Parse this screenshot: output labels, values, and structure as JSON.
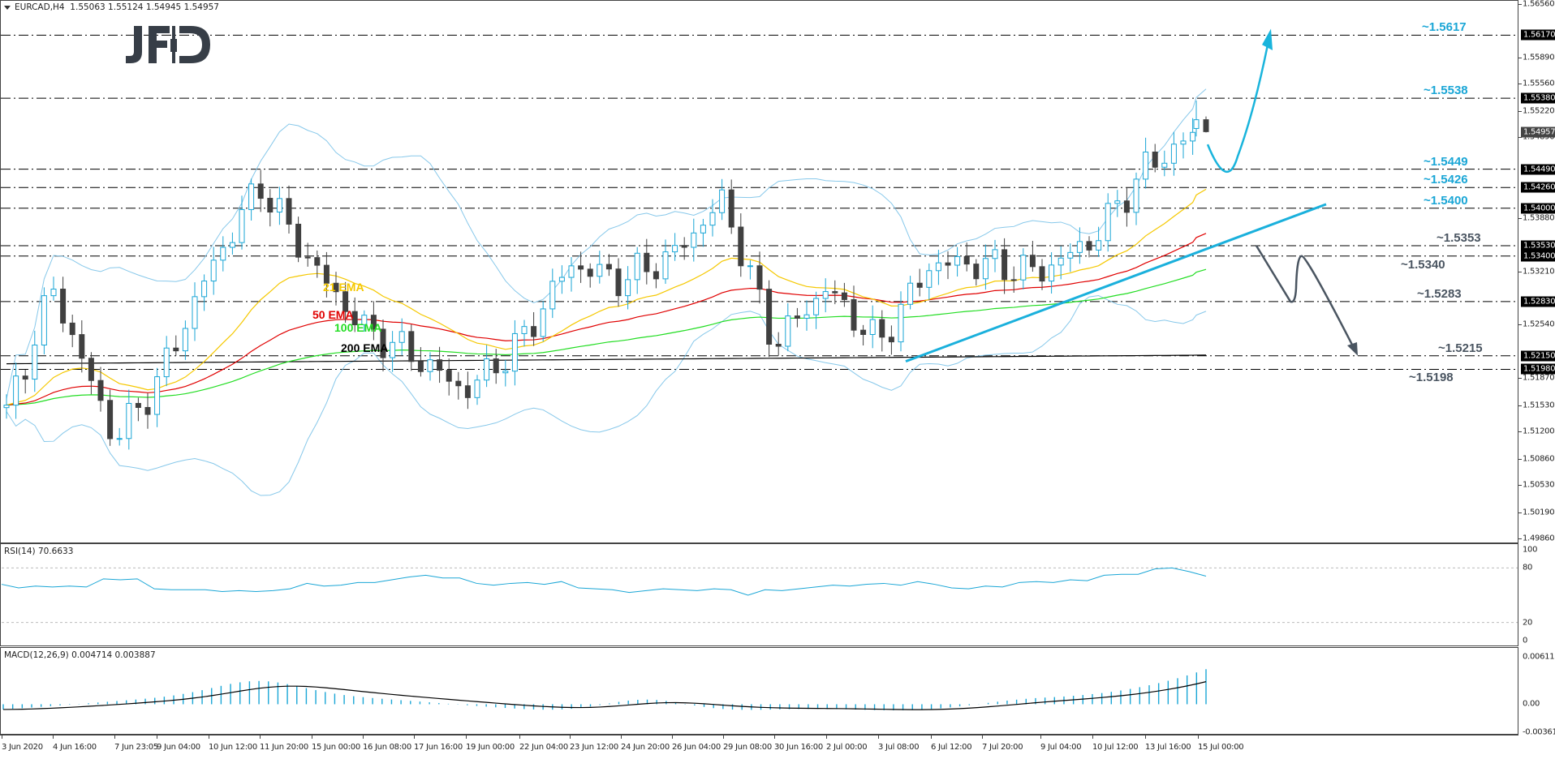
{
  "header": {
    "symbol": "EURCAD,H4",
    "ohlc": "1.55063 1.55124 1.54945 1.54957"
  },
  "logo": {
    "text": "JFD"
  },
  "price_axis": {
    "ticks": [
      "1.56560",
      "1.55890",
      "1.55560",
      "1.55220",
      "1.54890",
      "1.53880",
      "1.53210",
      "1.52540",
      "1.51870",
      "1.51530",
      "1.51200",
      "1.50860",
      "1.50530",
      "1.50190",
      "1.49860"
    ],
    "tags": [
      "1.56170",
      "1.55380",
      "1.54490",
      "1.54260",
      "1.54000",
      "1.53530",
      "1.53400",
      "1.52830",
      "1.52150",
      "1.51980"
    ],
    "current_price": "1.54957"
  },
  "levels": [
    {
      "label": "~1.5617",
      "value": 1.5617,
      "color": "#1aa6d6"
    },
    {
      "label": "~1.5538",
      "value": 1.5538,
      "color": "#1aa6d6"
    },
    {
      "label": "~1.5449",
      "value": 1.5449,
      "color": "#1aa6d6"
    },
    {
      "label": "~1.5426",
      "value": 1.5426,
      "color": "#1aa6d6"
    },
    {
      "label": "~1.5400",
      "value": 1.54,
      "color": "#1aa6d6"
    },
    {
      "label": "~1.5353",
      "value": 1.5353,
      "color": "#4a5561"
    },
    {
      "label": "~1.5340",
      "value": 1.534,
      "color": "#4a5561"
    },
    {
      "label": "~1.5283",
      "value": 1.5283,
      "color": "#4a5561"
    },
    {
      "label": "~1.5215",
      "value": 1.5215,
      "color": "#4a5561"
    },
    {
      "label": "~1.5198",
      "value": 1.5198,
      "color": "#4a5561"
    }
  ],
  "ema_labels": {
    "ema21": {
      "label": "21 EMA",
      "color": "#f5c800"
    },
    "ema50": {
      "label": "50 EMA",
      "color": "#e00000"
    },
    "ema100": {
      "label": "100 EMA",
      "color": "#22dd22"
    },
    "ema200": {
      "label": "200 EMA",
      "color": "#000000"
    }
  },
  "rsi": {
    "title": "RSI(14) 70.6633",
    "axis": [
      "100",
      "80",
      "20",
      "0"
    ]
  },
  "macd": {
    "title": "MACD(12,26,9) 0.004714 0.003887",
    "axis": [
      "0.006111",
      "0.00",
      "-0.003612"
    ]
  },
  "time_axis": {
    "labels": [
      "3 Jun 2020",
      "4 Jun 16:00",
      "7 Jun 23:05",
      "9 Jun 04:00",
      "10 Jun 12:00",
      "11 Jun 20:00",
      "15 Jun 00:00",
      "16 Jun 08:00",
      "17 Jun 16:00",
      "19 Jun 00:00",
      "22 Jun 04:00",
      "23 Jun 12:00",
      "24 Jun 20:00",
      "26 Jun 04:00",
      "29 Jun 08:00",
      "30 Jun 16:00",
      "2 Jul 00:00",
      "3 Jul 08:00",
      "6 Jul 12:00",
      "7 Jul 20:00",
      "9 Jul 04:00",
      "10 Jul 12:00",
      "13 Jul 16:00",
      "15 Jul 00:00"
    ]
  },
  "colors": {
    "bull_candle": "#1aa6d6",
    "bear_candle": "#404040",
    "bollinger": "#87c8ea",
    "trendline": "#1ab0dc",
    "bull_arrow": "#19b4dc",
    "bear_arrow": "#4a5561"
  },
  "chart_data": [
    {
      "type": "candlestick",
      "title": "EURCAD,H4 1.55063 1.55124 1.54945 1.54957",
      "symbol": "EURCAD",
      "timeframe": "H4",
      "x_labels": [
        "3 Jun 2020",
        "4 Jun 16:00",
        "7 Jun 23:05",
        "9 Jun 04:00",
        "10 Jun 12:00",
        "11 Jun 20:00",
        "15 Jun 00:00",
        "16 Jun 08:00",
        "17 Jun 16:00",
        "19 Jun 00:00",
        "22 Jun 04:00",
        "23 Jun 12:00",
        "24 Jun 20:00",
        "26 Jun 04:00",
        "29 Jun 08:00",
        "30 Jun 16:00",
        "2 Jul 00:00",
        "3 Jul 08:00",
        "6 Jul 12:00",
        "7 Jul 20:00",
        "9 Jul 04:00",
        "10 Jul 12:00",
        "13 Jul 16:00",
        "15 Jul 00:00"
      ],
      "ylim": [
        1.4986,
        1.5656
      ],
      "last_ohlc": {
        "open": 1.55063,
        "high": 1.55124,
        "low": 1.54945,
        "close": 1.54957
      },
      "approx_swing_points": [
        {
          "label": "3 Jun 2020",
          "close": 1.5135
        },
        {
          "label": "4 Jun 16:00",
          "close": 1.53
        },
        {
          "label": "7 Jun 23:05",
          "close": 1.511
        },
        {
          "label": "9 Jun 04:00",
          "close": 1.518
        },
        {
          "label": "10 Jun 12:00",
          "close": 1.532
        },
        {
          "label": "11 Jun 20:00",
          "close": 1.543
        },
        {
          "label": "15 Jun 00:00",
          "close": 1.533
        },
        {
          "label": "16 Jun 08:00",
          "close": 1.525
        },
        {
          "label": "17 Jun 16:00",
          "close": 1.5215
        },
        {
          "label": "19 Jun 00:00",
          "close": 1.517
        },
        {
          "label": "22 Jun 04:00",
          "close": 1.523
        },
        {
          "label": "23 Jun 12:00",
          "close": 1.533
        },
        {
          "label": "24 Jun 20:00",
          "close": 1.531
        },
        {
          "label": "26 Jun 04:00",
          "close": 1.534
        },
        {
          "label": "29 Jun 08:00",
          "close": 1.541
        },
        {
          "label": "30 Jun 16:00",
          "close": 1.523
        },
        {
          "label": "2 Jul 00:00",
          "close": 1.53
        },
        {
          "label": "3 Jul 08:00",
          "close": 1.523
        },
        {
          "label": "6 Jul 12:00",
          "close": 1.533
        },
        {
          "label": "7 Jul 20:00",
          "close": 1.533
        },
        {
          "label": "9 Jul 04:00",
          "close": 1.532
        },
        {
          "label": "10 Jul 12:00",
          "close": 1.536
        },
        {
          "label": "13 Jul 16:00",
          "close": 1.545
        },
        {
          "label": "15 Jul 00:00",
          "close": 1.5496
        }
      ],
      "horizontal_levels": [
        1.5617,
        1.5538,
        1.5449,
        1.5426,
        1.54,
        1.5353,
        1.534,
        1.5283,
        1.5215,
        1.5198
      ],
      "indicators": [
        "21 EMA",
        "50 EMA",
        "100 EMA",
        "200 EMA",
        "Bollinger Bands"
      ],
      "annotations": [
        "uptrend line from ~1.5198 (3 Jul) through ~1.5300 (9 Jul)",
        "bullish scenario arrow: dip to ~1.5449 then rise to ~1.5617",
        "bearish scenario arrow: break below ~1.5353, to ~1.5283, retest ~1.5340, fall to ~1.5215"
      ]
    },
    {
      "type": "line",
      "title": "RSI(14) 70.6633",
      "ylim": [
        0,
        100
      ],
      "reference_lines": [
        80,
        20
      ],
      "last_value": 70.6633,
      "approx_values": [
        62,
        58,
        60,
        59,
        60,
        59,
        68,
        67,
        68,
        57,
        56,
        56,
        56,
        54,
        55,
        54,
        55,
        57,
        63,
        60,
        61,
        64,
        64,
        67,
        70,
        72,
        69,
        69,
        63,
        61,
        63,
        64,
        62,
        65,
        58,
        57,
        56,
        53,
        55,
        57,
        56,
        55,
        57,
        56,
        50,
        56,
        55,
        57,
        59,
        61,
        60,
        62,
        63,
        61,
        65,
        62,
        58,
        57,
        60,
        59,
        64,
        65,
        64,
        67,
        66,
        72,
        73,
        73,
        79,
        80,
        76,
        71
      ]
    },
    {
      "type": "bar+line",
      "title": "MACD(12,26,9) 0.004714 0.003887",
      "ylim": [
        -0.003612,
        0.006111
      ],
      "series": [
        {
          "name": "MACD histogram",
          "last_value": 0.004714
        },
        {
          "name": "Signal",
          "last_value": 0.003887
        }
      ]
    }
  ]
}
